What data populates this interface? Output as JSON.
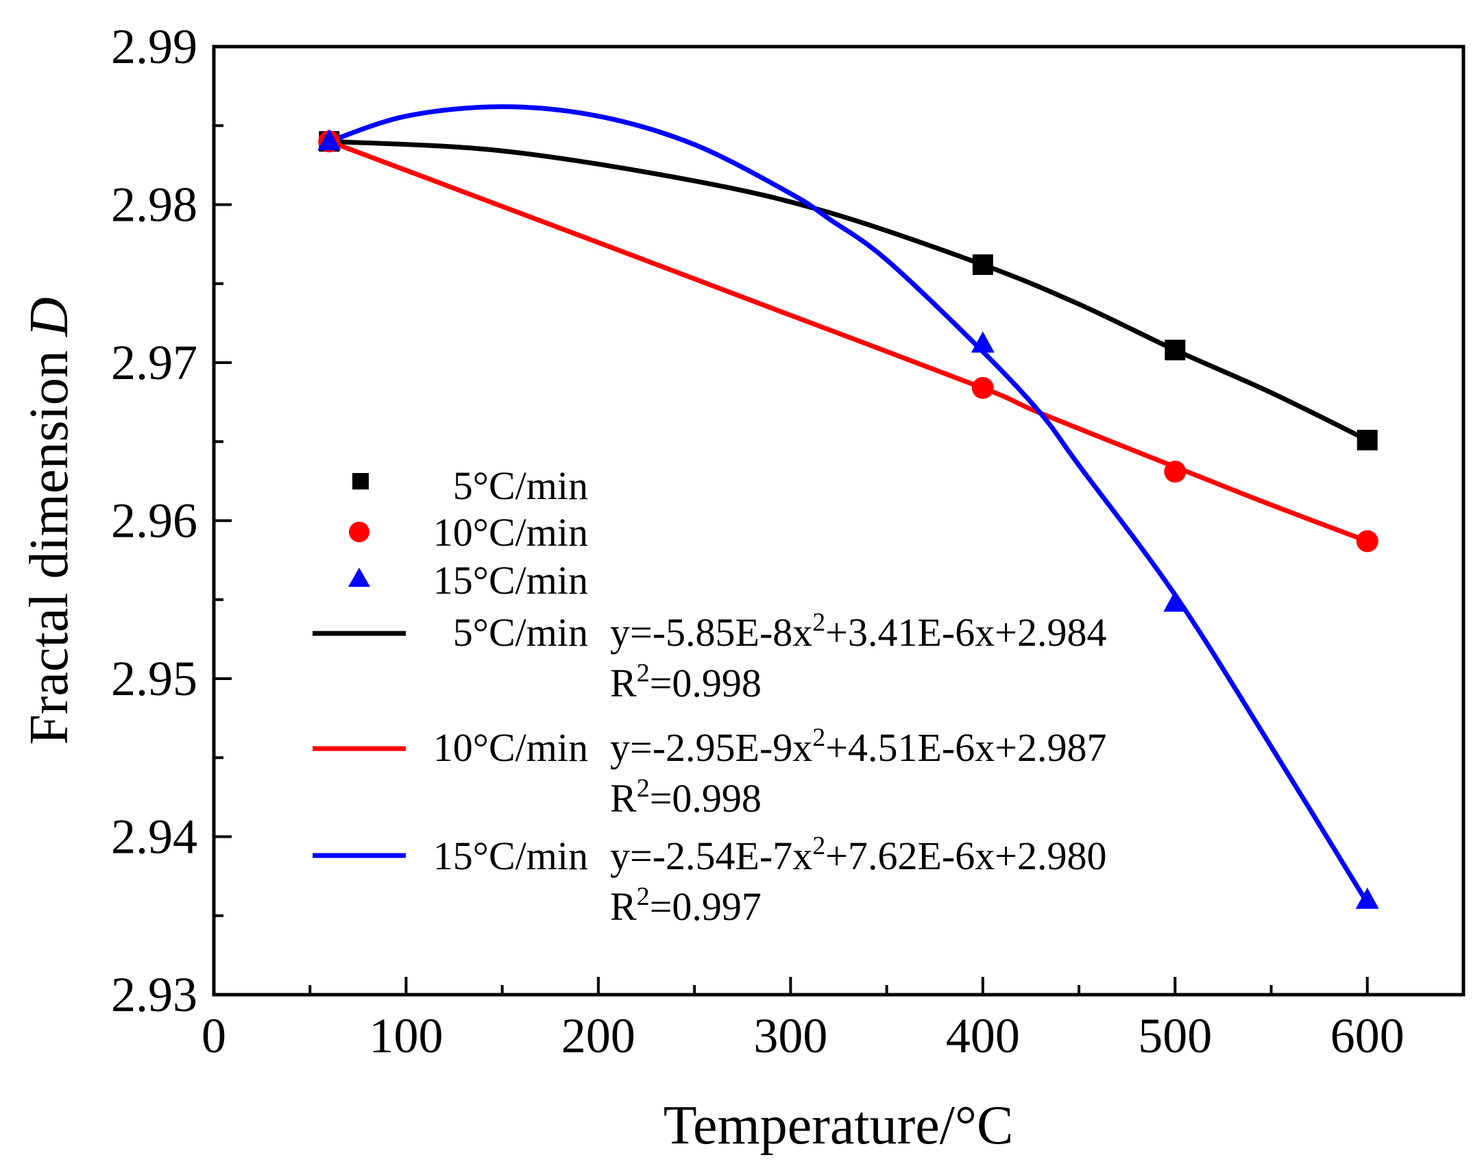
{
  "chart_data": {
    "type": "scatter",
    "title": "",
    "xlabel": "Temperature/°C",
    "ylabel_main": "Fractal dimension ",
    "ylabel_var": "D",
    "xlim": [
      0,
      650
    ],
    "ylim": [
      2.93,
      2.99
    ],
    "xticks": [
      0,
      100,
      200,
      300,
      400,
      500,
      600
    ],
    "xtick_labels": [
      "0",
      "100",
      "200",
      "300",
      "400",
      "500",
      "600"
    ],
    "yticks": [
      2.93,
      2.94,
      2.95,
      2.96,
      2.97,
      2.98,
      2.99
    ],
    "ytick_labels": [
      "2.93",
      "2.94",
      "2.95",
      "2.96",
      "2.97",
      "2.98",
      "2.99"
    ],
    "x_minor_step": 50,
    "y_minor_step": 0.005,
    "legend_position": "lower-left",
    "series": [
      {
        "name": "5°C/min",
        "color": "#000000",
        "marker": "square",
        "x": [
          60,
          400,
          500,
          600
        ],
        "y": [
          2.984,
          2.9762,
          2.9708,
          2.9651
        ],
        "fit_label": "5°C/min",
        "fit_eq_prefix": "y=-5.85E-8x",
        "fit_eq_suffix": "+3.41E-6x+2.984",
        "fit_r2_value": "=0.998",
        "fit_x": [
          60,
          150,
          250,
          320,
          400,
          450,
          500,
          550,
          600
        ],
        "fit_y": [
          2.984,
          2.9834,
          2.9815,
          2.9795,
          2.9762,
          2.9737,
          2.9708,
          2.9681,
          2.9651
        ]
      },
      {
        "name": "10°C/min",
        "color": "#ff0000",
        "marker": "circle",
        "x": [
          60,
          400,
          500,
          600
        ],
        "y": [
          2.984,
          2.9684,
          2.9631,
          2.9587
        ],
        "fit_label": "10°C/min",
        "fit_eq_prefix": "y=-2.95E-9x",
        "fit_eq_suffix": "+4.51E-6x+2.987",
        "fit_r2_value": "=0.998",
        "fit_x": [
          60,
          200,
          300,
          400,
          430,
          500,
          550,
          600
        ],
        "fit_y": [
          2.984,
          2.9776,
          2.973,
          2.9684,
          2.9668,
          2.9634,
          2.961,
          2.9587
        ]
      },
      {
        "name": "15°C/min",
        "color": "#0000ff",
        "marker": "triangle",
        "x": [
          60,
          400,
          500,
          600
        ],
        "y": [
          2.984,
          2.9712,
          2.9548,
          2.936
        ],
        "fit_label": "15°C/min",
        "fit_eq_prefix": "y=-2.54E-7x",
        "fit_eq_suffix": "+7.62E-6x+2.980",
        "fit_r2_value": "=0.997",
        "fit_x": [
          60,
          100,
          150,
          200,
          250,
          300,
          320,
          350,
          400,
          430,
          450,
          500,
          550,
          600
        ],
        "fit_y": [
          2.984,
          2.9856,
          2.9862,
          2.9856,
          2.9838,
          2.9807,
          2.9791,
          2.9765,
          2.9707,
          2.9668,
          2.9635,
          2.9553,
          2.9457,
          2.9358
        ]
      }
    ]
  }
}
